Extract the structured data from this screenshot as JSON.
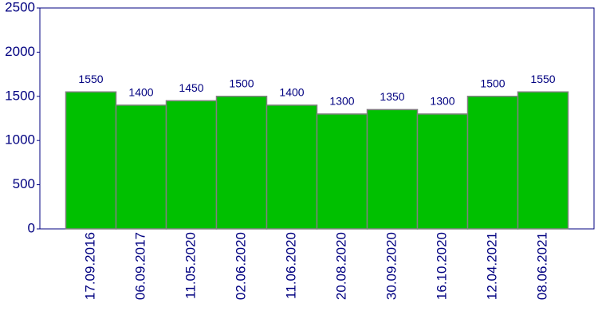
{
  "chart_data": {
    "type": "bar",
    "categories": [
      "17.09.2016",
      "06.09.2017",
      "11.05.2020",
      "02.06.2020",
      "11.06.2020",
      "20.08.2020",
      "30.09.2020",
      "16.10.2020",
      "12.04.2021",
      "08.06.2021"
    ],
    "values": [
      1550,
      1400,
      1450,
      1500,
      1400,
      1300,
      1350,
      1300,
      1500,
      1550
    ],
    "color": "#00c000",
    "ylim": [
      0,
      2500
    ],
    "yticks": [
      0,
      500,
      1000,
      1500,
      2000,
      2500
    ]
  }
}
